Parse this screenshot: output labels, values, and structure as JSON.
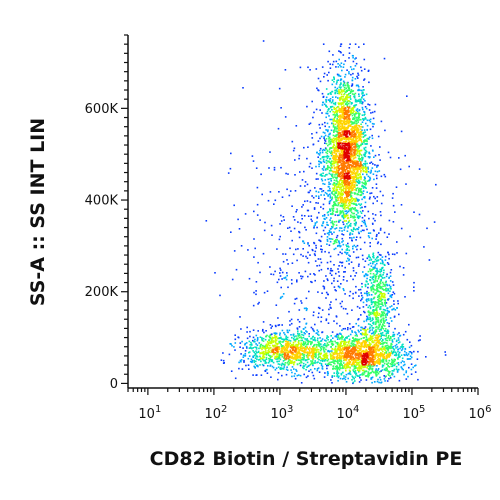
{
  "chart_data": {
    "type": "scatter",
    "plot_style": "density-colored flow cytometry dot plot",
    "xlabel": "CD82 Biotin / Streptavidin PE",
    "ylabel": "SS-A :: SS INT LIN",
    "x_scale": "log",
    "y_scale": "linear",
    "xlim": [
      5,
      1000000
    ],
    "ylim": [
      -10000,
      760000
    ],
    "x_ticks": [
      {
        "value": 10,
        "base": "10",
        "exp": "1"
      },
      {
        "value": 100,
        "base": "10",
        "exp": "2"
      },
      {
        "value": 1000,
        "base": "10",
        "exp": "3"
      },
      {
        "value": 10000,
        "base": "10",
        "exp": "4"
      },
      {
        "value": 100000,
        "base": "10",
        "exp": "5"
      },
      {
        "value": 1000000,
        "base": "10",
        "exp": "6"
      }
    ],
    "y_ticks": [
      {
        "value": 0,
        "label": "0"
      },
      {
        "value": 200000,
        "label": "200K"
      },
      {
        "value": 400000,
        "label": "400K"
      },
      {
        "value": 600000,
        "label": "600K"
      }
    ],
    "density_colors": [
      "#0000cc",
      "#0a3cff",
      "#00a8ff",
      "#00e0c0",
      "#33ff66",
      "#c8ff00",
      "#ffd400",
      "#ff7a00",
      "#e00000"
    ],
    "populations": [
      {
        "x_center": 10000,
        "y_center": 500000,
        "x_spread_decades": 0.17,
        "y_spread": 90000,
        "y_range": [
          210000,
          740000
        ],
        "points": 2600
      },
      {
        "x_center": 1300,
        "y_center": 70000,
        "x_spread_decades": 0.35,
        "y_spread": 22000,
        "points": 1000
      },
      {
        "x_center": 18000,
        "y_center": 60000,
        "x_spread_decades": 0.35,
        "y_spread": 25000,
        "points": 1400
      },
      {
        "x_center": 30000,
        "y_center": 180000,
        "x_spread_decades": 0.12,
        "y_spread": 60000,
        "points": 600
      },
      {
        "x_center": 5000,
        "y_center": 300000,
        "x_spread_decades": 0.6,
        "y_spread": 150000,
        "points": 700
      }
    ]
  }
}
